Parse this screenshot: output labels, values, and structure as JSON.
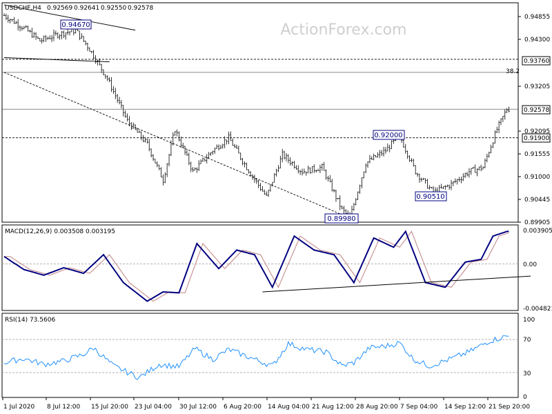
{
  "watermark": "ActionForex.com",
  "chart_data": [
    {
      "type": "ohlc",
      "title": "USDCHF,H4",
      "ohlc_readout": [
        "0.92569",
        "0.92641",
        "0.92550",
        "0.92578"
      ],
      "price_ticks": [
        "0.94855",
        "0.94300",
        "0.93205",
        "0.92095",
        "0.91555",
        "0.91000",
        "0.90445",
        "0.89905"
      ],
      "x_ticks": [
        "1 Jul 2020",
        "8 Jul 12:00",
        "15 Jul 20:00",
        "23 Jul 04:00",
        "30 Jul 12:00",
        "6 Aug 20:00",
        "14 Aug 04:00",
        "21 Aug 12:00",
        "28 Aug 20:00",
        "7 Sep 04:00",
        "14 Sep 12:00",
        "21 Sep 20:00"
      ],
      "ylim": [
        0.899,
        0.951
      ],
      "levels": [
        {
          "label": "0.93760",
          "value": 0.9376,
          "style": "dashed"
        },
        {
          "label": "38.2",
          "value": 0.9345,
          "style": "solid"
        },
        {
          "label": "0.92578",
          "value": 0.92578,
          "style": "solid"
        },
        {
          "label": "0.91900",
          "value": 0.919,
          "style": "dashed"
        }
      ],
      "annotations": [
        "0.94670",
        "0.92000",
        "0.90510",
        "0.89980"
      ],
      "anchor_prices": [
        {
          "t": 0,
          "p": 0.948
        },
        {
          "t": 10,
          "p": 0.945
        },
        {
          "t": 18,
          "p": 0.942
        },
        {
          "t": 27,
          "p": 0.9435
        },
        {
          "t": 36,
          "p": 0.9445
        },
        {
          "t": 43,
          "p": 0.94
        },
        {
          "t": 52,
          "p": 0.933
        },
        {
          "t": 62,
          "p": 0.923
        },
        {
          "t": 72,
          "p": 0.9175
        },
        {
          "t": 80,
          "p": 0.909
        },
        {
          "t": 86,
          "p": 0.921
        },
        {
          "t": 95,
          "p": 0.911
        },
        {
          "t": 105,
          "p": 0.916
        },
        {
          "t": 113,
          "p": 0.919
        },
        {
          "t": 122,
          "p": 0.912
        },
        {
          "t": 132,
          "p": 0.905
        },
        {
          "t": 140,
          "p": 0.915
        },
        {
          "t": 150,
          "p": 0.911
        },
        {
          "t": 160,
          "p": 0.912
        },
        {
          "t": 170,
          "p": 0.902
        },
        {
          "t": 174,
          "p": 0.9
        },
        {
          "t": 182,
          "p": 0.913
        },
        {
          "t": 192,
          "p": 0.916
        },
        {
          "t": 199,
          "p": 0.9195
        },
        {
          "t": 207,
          "p": 0.911
        },
        {
          "t": 216,
          "p": 0.906
        },
        {
          "t": 225,
          "p": 0.908
        },
        {
          "t": 234,
          "p": 0.911
        },
        {
          "t": 241,
          "p": 0.912
        },
        {
          "t": 248,
          "p": 0.921
        },
        {
          "t": 253,
          "p": 0.9258
        }
      ],
      "trendlines": [
        {
          "from": {
            "t": 0,
            "p": 0.9505
          },
          "to": {
            "t": 66,
            "p": 0.9445
          },
          "style": "solid"
        },
        {
          "from": {
            "t": 0,
            "p": 0.938
          },
          "to": {
            "t": 53,
            "p": 0.937
          },
          "style": "solid"
        },
        {
          "from": {
            "t": 0,
            "p": 0.9345
          },
          "to": {
            "t": 175,
            "p": 0.8998
          },
          "style": "dashed"
        }
      ]
    },
    {
      "type": "line",
      "title": "MACD(12,26,9) 0.003508 0.003195",
      "y_ticks": [
        "0.003905",
        "0.00",
        "-0.004821"
      ],
      "ylim": [
        -0.005,
        0.0042
      ],
      "series": [
        {
          "role": "macd",
          "color": "#000080",
          "anchors": [
            {
              "t": 0,
              "v": 0.0008
            },
            {
              "t": 10,
              "v": -0.0006
            },
            {
              "t": 20,
              "v": -0.0012
            },
            {
              "t": 30,
              "v": -0.0004
            },
            {
              "t": 40,
              "v": -0.001
            },
            {
              "t": 50,
              "v": 0.001
            },
            {
              "t": 60,
              "v": -0.002
            },
            {
              "t": 72,
              "v": -0.004
            },
            {
              "t": 80,
              "v": -0.003
            },
            {
              "t": 88,
              "v": -0.0031
            },
            {
              "t": 97,
              "v": 0.0022
            },
            {
              "t": 108,
              "v": -0.0005
            },
            {
              "t": 117,
              "v": 0.0015
            },
            {
              "t": 126,
              "v": 0.001
            },
            {
              "t": 135,
              "v": -0.0025
            },
            {
              "t": 146,
              "v": 0.003
            },
            {
              "t": 156,
              "v": 0.0015
            },
            {
              "t": 166,
              "v": 0.001
            },
            {
              "t": 176,
              "v": -0.002
            },
            {
              "t": 186,
              "v": 0.0028
            },
            {
              "t": 196,
              "v": 0.0018
            },
            {
              "t": 202,
              "v": 0.0035
            },
            {
              "t": 212,
              "v": -0.002
            },
            {
              "t": 222,
              "v": -0.0025
            },
            {
              "t": 232,
              "v": 0.0002
            },
            {
              "t": 240,
              "v": 0.0005
            },
            {
              "t": 246,
              "v": 0.003
            },
            {
              "t": 253,
              "v": 0.0035
            }
          ]
        },
        {
          "role": "signal",
          "color": "#c08080",
          "lag": 3
        }
      ],
      "trendline": {
        "from": {
          "t": 130,
          "v": -0.003
        },
        "to": {
          "t": 265,
          "v": -0.0013
        }
      }
    },
    {
      "type": "line",
      "title": "RSI(14) 73.5606",
      "y_ticks": [
        "100",
        "70",
        "30",
        "0"
      ],
      "ylim": [
        0,
        100
      ],
      "levels": [
        70,
        30
      ],
      "series": [
        {
          "color": "#1e90ff",
          "anchors": [
            {
              "t": 0,
              "v": 42
            },
            {
              "t": 10,
              "v": 47
            },
            {
              "t": 20,
              "v": 40
            },
            {
              "t": 30,
              "v": 44
            },
            {
              "t": 40,
              "v": 52
            },
            {
              "t": 45,
              "v": 60
            },
            {
              "t": 55,
              "v": 38
            },
            {
              "t": 68,
              "v": 24
            },
            {
              "t": 78,
              "v": 40
            },
            {
              "t": 88,
              "v": 37
            },
            {
              "t": 96,
              "v": 59
            },
            {
              "t": 105,
              "v": 46
            },
            {
              "t": 113,
              "v": 58
            },
            {
              "t": 124,
              "v": 48
            },
            {
              "t": 135,
              "v": 38
            },
            {
              "t": 143,
              "v": 65
            },
            {
              "t": 152,
              "v": 58
            },
            {
              "t": 162,
              "v": 55
            },
            {
              "t": 170,
              "v": 38
            },
            {
              "t": 176,
              "v": 42
            },
            {
              "t": 184,
              "v": 60
            },
            {
              "t": 192,
              "v": 62
            },
            {
              "t": 199,
              "v": 66
            },
            {
              "t": 206,
              "v": 46
            },
            {
              "t": 214,
              "v": 38
            },
            {
              "t": 224,
              "v": 46
            },
            {
              "t": 234,
              "v": 55
            },
            {
              "t": 244,
              "v": 68
            },
            {
              "t": 253,
              "v": 74
            }
          ]
        }
      ]
    }
  ]
}
